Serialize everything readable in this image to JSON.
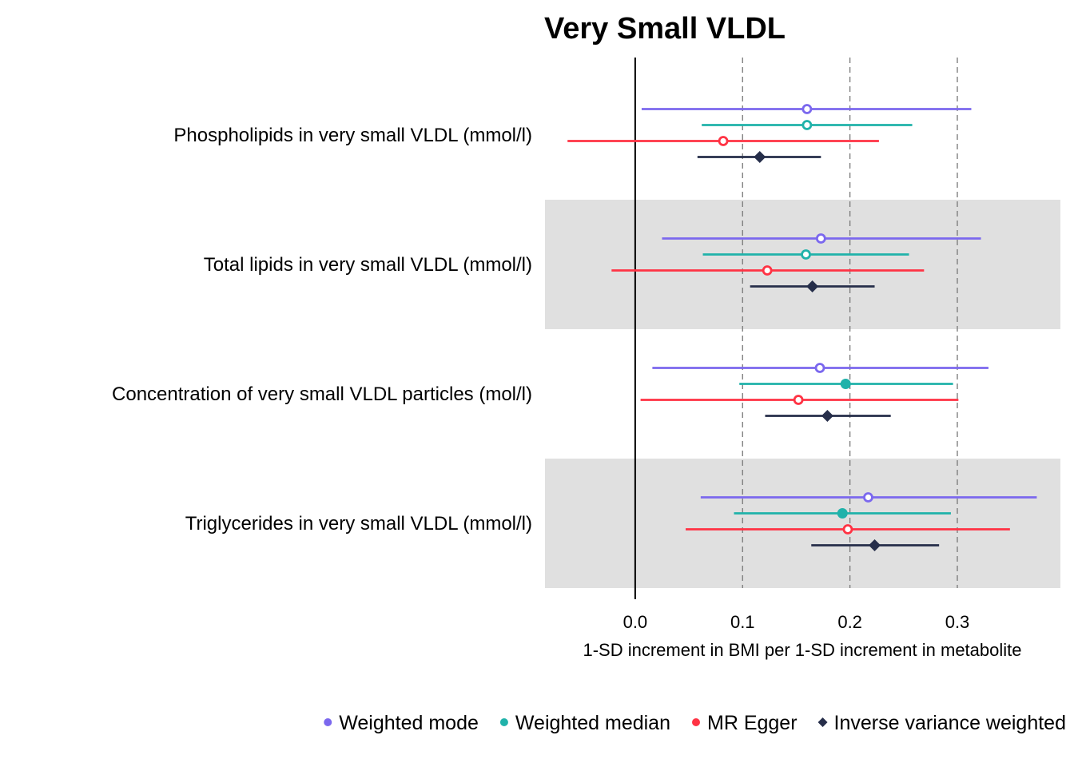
{
  "chart_data": {
    "type": "forest",
    "title": "Very Small VLDL",
    "xlabel": "1-SD increment in BMI per 1-SD increment in metabolite",
    "ylabel": "",
    "xlim": [
      -0.084,
      0.396
    ],
    "x_ticks": [
      0.0,
      0.1,
      0.2,
      0.3
    ],
    "x_tick_labels": [
      "0.0",
      "0.1",
      "0.2",
      "0.3"
    ],
    "reference_line": 0,
    "dashed_gridlines": [
      0.1,
      0.2,
      0.3
    ],
    "legend_position": "bottom",
    "categories": [
      "Phospholipids in very small VLDL (mmol/l)",
      "Total lipids in very small VLDL (mmol/l)",
      "Concentration of very small VLDL particles (mol/l)",
      "Triglycerides in very small VLDL (mmol/l)"
    ],
    "shaded_categories": [
      false,
      true,
      false,
      true
    ],
    "series": [
      {
        "name": "Weighted mode",
        "color": "#7b68ee",
        "marker": "circle",
        "estimates": [
          0.16,
          0.173,
          0.172,
          0.217
        ],
        "lower": [
          0.006,
          0.025,
          0.016,
          0.061
        ],
        "upper": [
          0.313,
          0.322,
          0.329,
          0.374
        ],
        "filled": [
          false,
          false,
          false,
          false
        ]
      },
      {
        "name": "Weighted median",
        "color": "#20b2aa",
        "marker": "circle",
        "estimates": [
          0.16,
          0.159,
          0.196,
          0.193
        ],
        "lower": [
          0.062,
          0.063,
          0.097,
          0.092
        ],
        "upper": [
          0.258,
          0.255,
          0.296,
          0.294
        ],
        "filled": [
          false,
          false,
          true,
          true
        ]
      },
      {
        "name": "MR Egger",
        "color": "#ff3344",
        "marker": "circle",
        "estimates": [
          0.082,
          0.123,
          0.152,
          0.198
        ],
        "lower": [
          -0.063,
          -0.022,
          0.005,
          0.047
        ],
        "upper": [
          0.227,
          0.269,
          0.301,
          0.349
        ],
        "filled": [
          false,
          false,
          false,
          false
        ]
      },
      {
        "name": "Inverse variance weighted",
        "color": "#262e4a",
        "marker": "diamond",
        "estimates": [
          0.116,
          0.165,
          0.179,
          0.223
        ],
        "lower": [
          0.058,
          0.107,
          0.121,
          0.164
        ],
        "upper": [
          0.173,
          0.223,
          0.238,
          0.283
        ],
        "filled": [
          true,
          true,
          true,
          true
        ]
      }
    ]
  }
}
